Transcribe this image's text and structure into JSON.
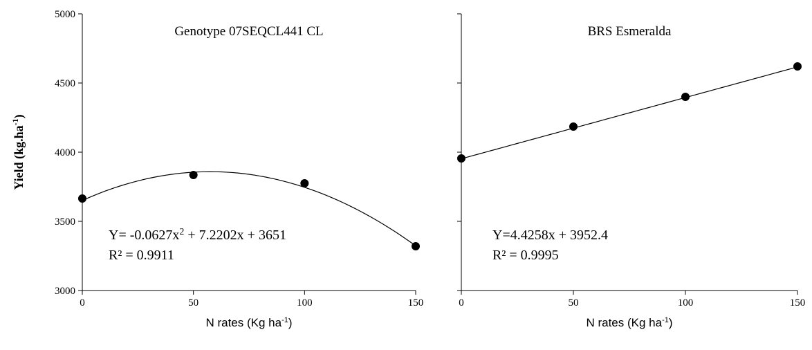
{
  "chart_data": [
    {
      "type": "scatter",
      "title": "Genotype 07SEQCL441 CL",
      "xlabel": "N rates (Kg ha",
      "xlabel_sup": "-1",
      "xlabel_tail": ")",
      "ylabel": "Yield (kg.ha",
      "ylabel_sup": "-1",
      "ylabel_tail": ")",
      "xlim": [
        0,
        150
      ],
      "ylim": [
        3000,
        5000
      ],
      "xticks": [
        "0",
        "50",
        "100",
        "150"
      ],
      "yticks": [
        "3000",
        "3500",
        "4000",
        "4500",
        "5000"
      ],
      "x": [
        0,
        50,
        100,
        150
      ],
      "y": [
        3665,
        3835,
        3775,
        3320
      ],
      "fit": {
        "kind": "quadratic",
        "a": -0.0627,
        "b": 7.2202,
        "c": 3651
      },
      "equation_pre": "Y= -0.0627x",
      "equation_sup": "2",
      "equation_post": " + 7.2202x + 3651",
      "r2": "R² = 0.9911",
      "grid": false
    },
    {
      "type": "scatter",
      "title": "BRS Esmeralda",
      "xlabel": "N rates (Kg ha",
      "xlabel_sup": "-1",
      "xlabel_tail": ")",
      "xlim": [
        0,
        150
      ],
      "ylim": [
        3000,
        5000
      ],
      "xticks": [
        "0",
        "50",
        "100",
        "150"
      ],
      "x": [
        0,
        50,
        100,
        150
      ],
      "y": [
        3955,
        4185,
        4400,
        4620
      ],
      "fit": {
        "kind": "linear",
        "a": 4.4258,
        "b": 3952.4
      },
      "equation": "Y=4.4258x + 3952.4",
      "r2": "R² = 0.9995",
      "grid": false
    }
  ],
  "colors": {
    "ink": "#000000",
    "background": "#ffffff"
  }
}
